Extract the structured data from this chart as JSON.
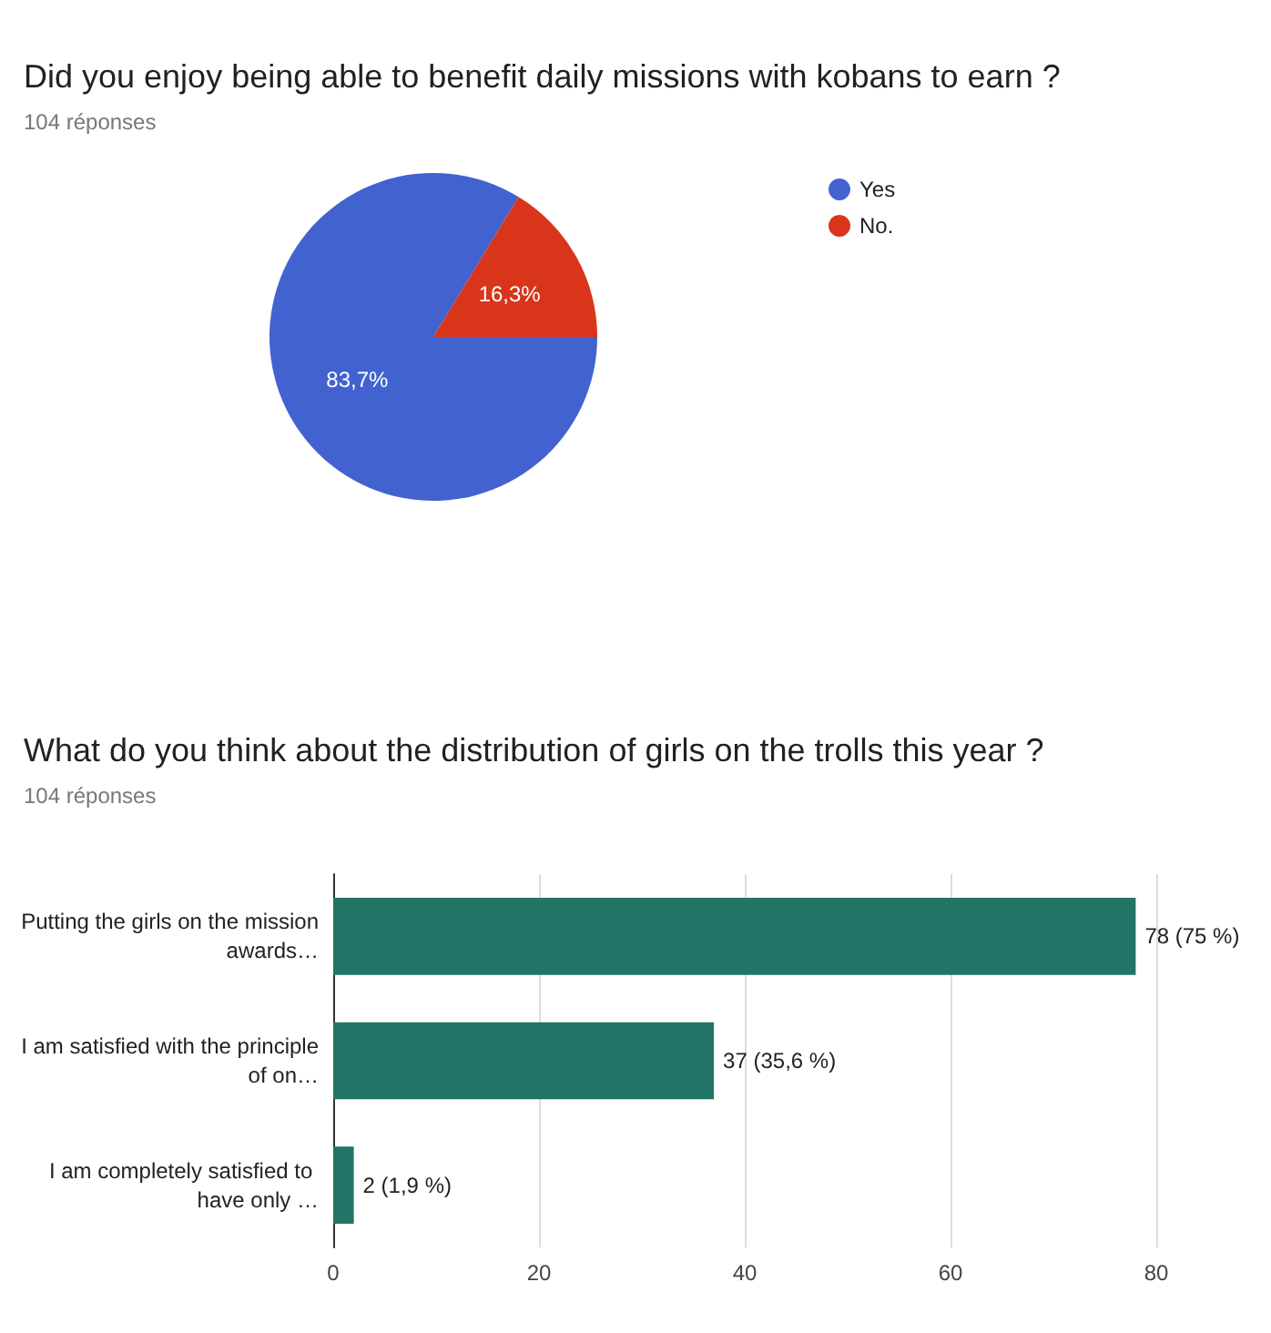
{
  "chart_data": [
    {
      "type": "pie",
      "title": "Did you enjoy being able to benefit daily missions with kobans to earn ?",
      "subtitle": "104 réponses",
      "categories": [
        "Yes",
        "No."
      ],
      "values": [
        83.7,
        16.3
      ],
      "colors": [
        "#4262cf",
        "#d8351b"
      ],
      "value_labels": [
        "83,7%",
        "16,3%"
      ],
      "legend": "top right"
    },
    {
      "type": "bar",
      "orientation": "horizontal",
      "title": "What do you think about the distribution of girls on the trolls this year ?",
      "subtitle": "104 réponses",
      "categories": [
        "Putting the girls on the mission awards…",
        "I am satisfied with the principle of on…",
        "I am completely satisfied to have only …"
      ],
      "values": [
        78,
        37,
        2
      ],
      "color": "#227466",
      "value_labels": [
        "78 (75 %)",
        "37 (35,6 %)",
        "2 (1,9 %)"
      ],
      "xlim": [
        0,
        80
      ],
      "xticks": [
        0,
        20,
        40,
        60,
        80
      ],
      "grid": "x"
    }
  ]
}
